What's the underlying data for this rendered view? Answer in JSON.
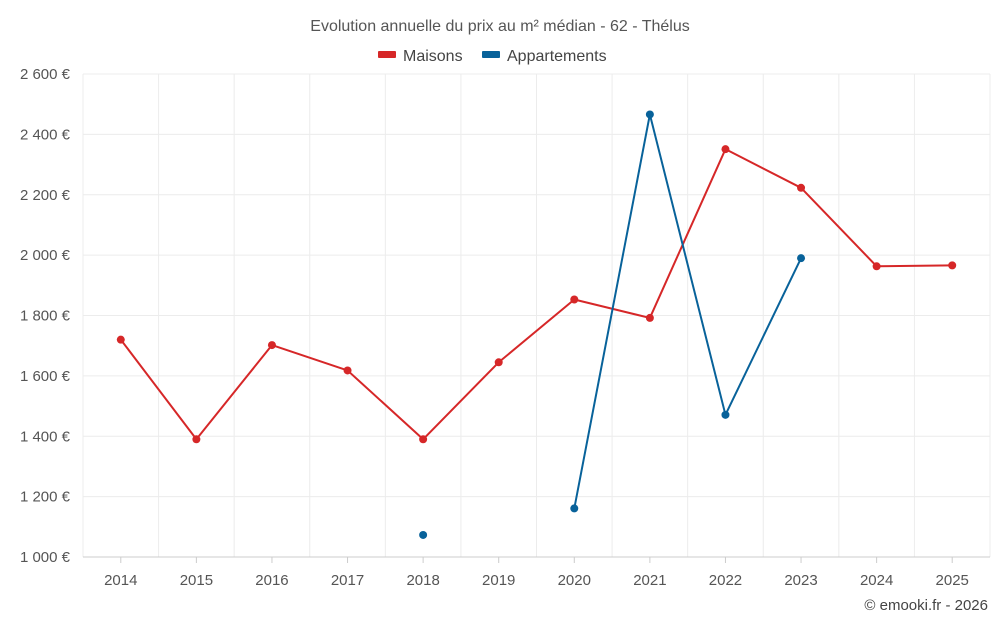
{
  "chart_data": {
    "type": "line",
    "title": "Evolution annuelle du prix au m² médian - 62 - Thélus",
    "categories": [
      "2014",
      "2015",
      "2016",
      "2017",
      "2018",
      "2019",
      "2020",
      "2021",
      "2022",
      "2023",
      "2024",
      "2025"
    ],
    "ylim": [
      1000,
      2600
    ],
    "yticks": [
      1000,
      1200,
      1400,
      1600,
      1800,
      2000,
      2200,
      2400,
      2600
    ],
    "ytick_labels": [
      "1 000 €",
      "1 200 €",
      "1 400 €",
      "1 600 €",
      "1 800 €",
      "2 000 €",
      "2 200 €",
      "2 400 €",
      "2 600 €"
    ],
    "grid": true,
    "legend_position": "top-center",
    "series": [
      {
        "name": "Maisons",
        "color": "#d62728",
        "values": [
          1720,
          1390,
          1702,
          1618,
          1390,
          1645,
          1853,
          1792,
          2351,
          2223,
          1963,
          1966
        ]
      },
      {
        "name": "Appartements",
        "color": "#08629a",
        "values": [
          null,
          null,
          null,
          null,
          1073,
          null,
          1161,
          2466,
          1471,
          1990,
          null,
          null
        ]
      }
    ]
  },
  "credit": "© emooki.fr - 2026"
}
